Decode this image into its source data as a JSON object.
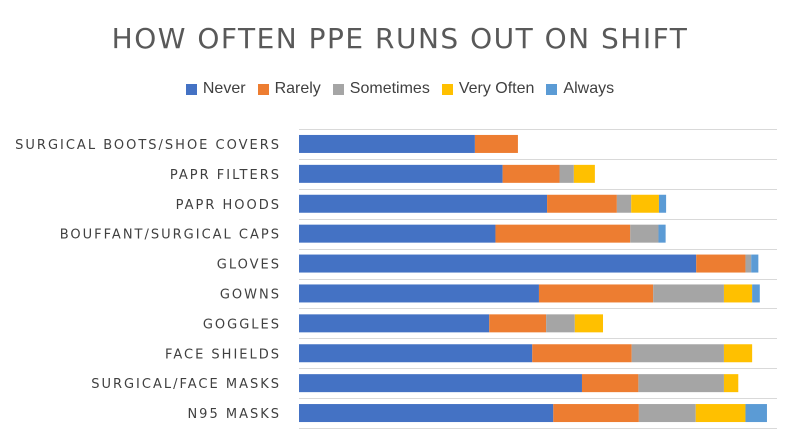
{
  "chart_data": {
    "type": "bar",
    "orientation": "horizontal",
    "stacked": true,
    "title": "HOW OFTEN PPE RUNS OUT ON SHIFT",
    "xlabel": "",
    "ylabel": "",
    "legend_position": "top",
    "grid": true,
    "xlim": [
      0,
      100
    ],
    "categories": [
      "SURGICAL BOOTS/SHOE COVERS",
      "PAPR FILTERS",
      "PAPR HOODS",
      "BOUFFANT/SURGICAL CAPS",
      "GLOVES",
      "GOWNS",
      "GOGGLES",
      "FACE SHIELDS",
      "SURGICAL/FACE MASKS",
      "N95 MASKS"
    ],
    "series": [
      {
        "name": "Never",
        "color": "#4472C4",
        "values": [
          36.8,
          42.6,
          51.9,
          41.1,
          83.1,
          50.2,
          39.8,
          48.8,
          59.2,
          53.2
        ]
      },
      {
        "name": "Rarely",
        "color": "#ED7D31",
        "values": [
          9.0,
          11.9,
          14.6,
          28.2,
          10.3,
          23.9,
          11.9,
          20.8,
          11.8,
          17.9
        ]
      },
      {
        "name": "Sometimes",
        "color": "#A5A5A5",
        "values": [
          0,
          3.0,
          3.0,
          5.9,
          1.2,
          14.8,
          6.0,
          19.3,
          17.9,
          11.9
        ]
      },
      {
        "name": "Very Often",
        "color": "#FFC000",
        "values": [
          0,
          4.4,
          5.8,
          0,
          0,
          5.9,
          5.9,
          5.9,
          3.0,
          10.4
        ]
      },
      {
        "name": "Always",
        "color": "#5B9BD5",
        "values": [
          0,
          0,
          1.5,
          1.5,
          1.5,
          1.6,
          0,
          0,
          0,
          4.5
        ]
      }
    ]
  }
}
